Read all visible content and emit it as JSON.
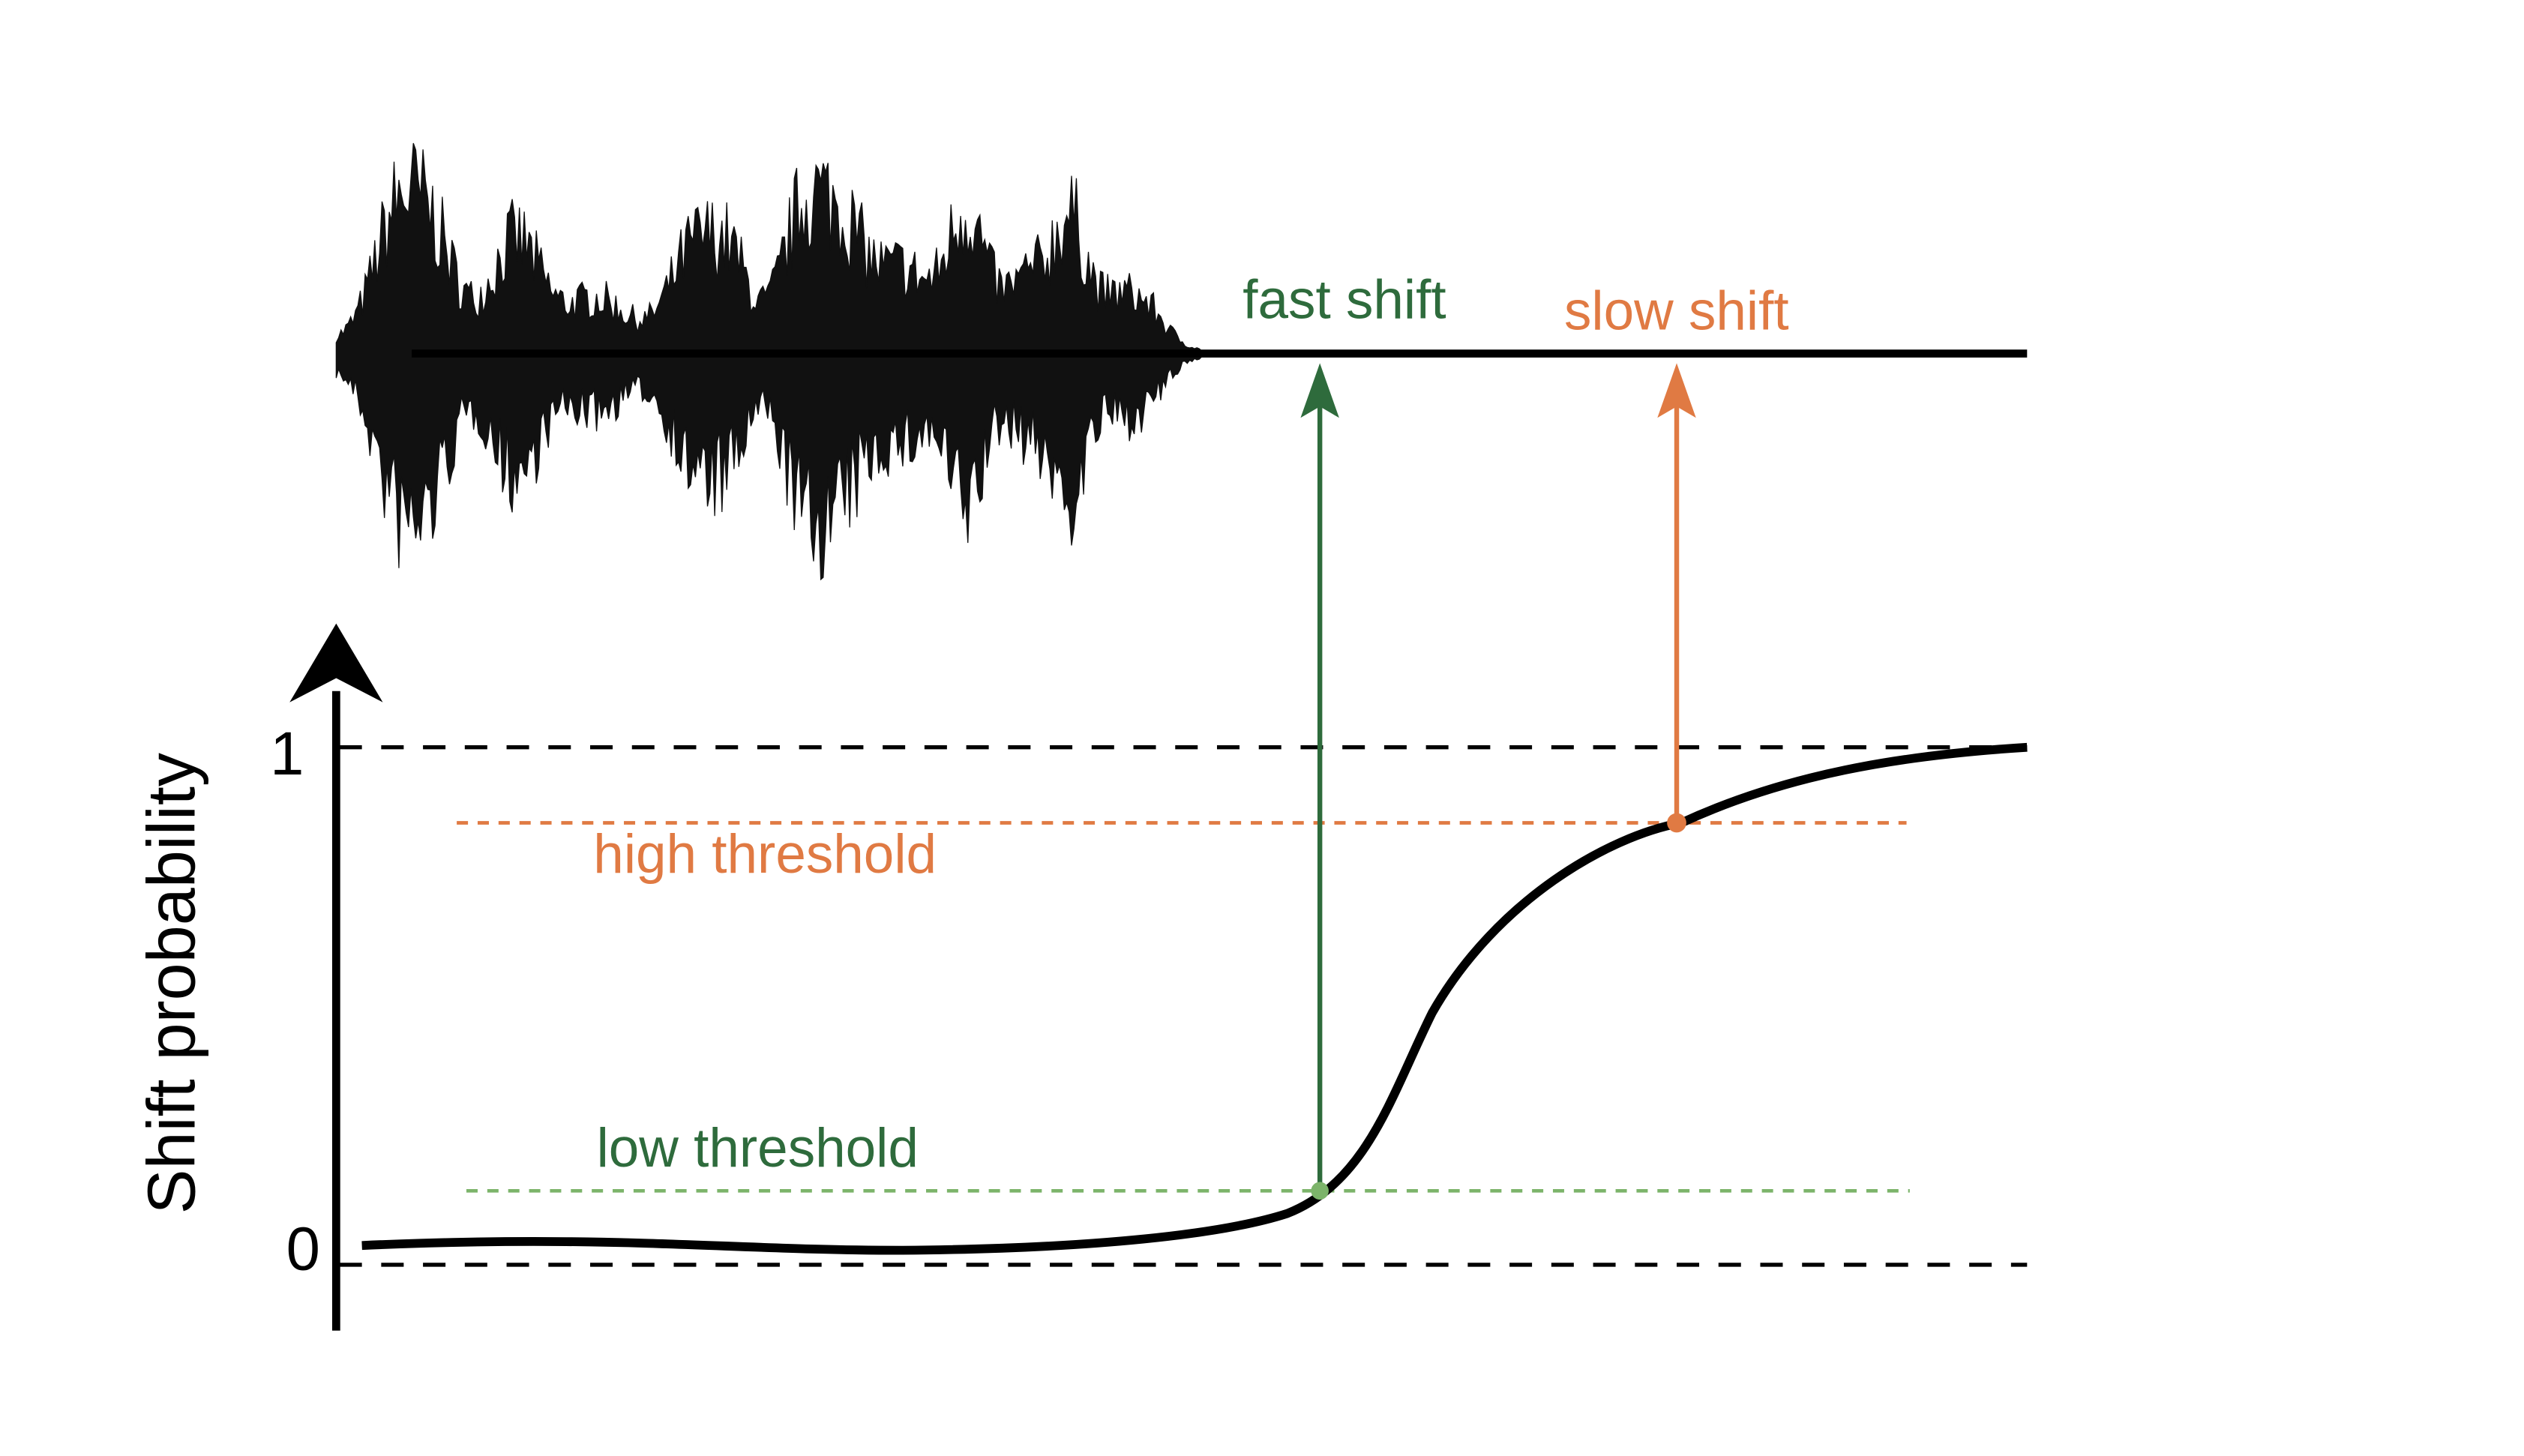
{
  "diagram": {
    "ylabel": "Shift probability",
    "y_ticks": [
      "1",
      "0"
    ],
    "labels": {
      "fast_shift": "fast shift",
      "slow_shift": "slow shift",
      "high_threshold": "high threshold",
      "low_threshold": "low threshold"
    },
    "thresholds": {
      "low": 0.14,
      "high": 0.85
    },
    "colors": {
      "fast": "#2e6b3c",
      "slow": "#e07a43",
      "low_line": "#7cb46a",
      "high_line": "#e07a43",
      "ink": "#000000"
    }
  }
}
